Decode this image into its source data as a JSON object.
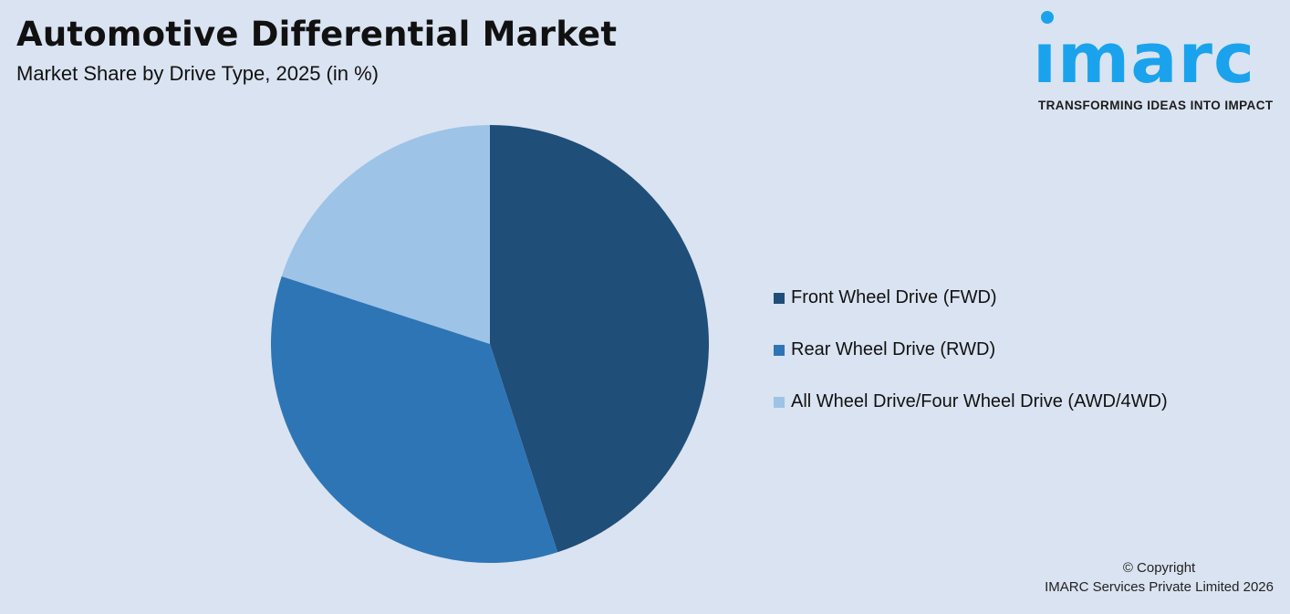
{
  "header": {
    "title": "Automotive Differential Market",
    "subtitle": "Market Share by Drive Type, 2025 (in %)"
  },
  "logo": {
    "word": "ımarc",
    "tagline": "TRANSFORMING IDEAS INTO IMPACT",
    "color": "#1aa3ec"
  },
  "legend": {
    "items": [
      {
        "label": "Front Wheel Drive (FWD)",
        "color": "#1f4e79"
      },
      {
        "label": "Rear Wheel Drive (RWD)",
        "color": "#2e75b6"
      },
      {
        "label": "All Wheel Drive/Four Wheel Drive (AWD/4WD)",
        "color": "#9dc3e6"
      }
    ]
  },
  "footer": {
    "line1": "© Copyright",
    "line2": "IMARC Services Private Limited 2026"
  },
  "chart_data": {
    "type": "pie",
    "title": "Automotive Differential Market",
    "subtitle": "Market Share by Drive Type, 2025 (in %)",
    "categories": [
      "Front Wheel Drive (FWD)",
      "Rear Wheel Drive (RWD)",
      "All Wheel Drive/Four Wheel Drive (AWD/4WD)"
    ],
    "values": [
      45,
      35,
      20
    ],
    "colors": [
      "#1f4e79",
      "#2e75b6",
      "#9dc3e6"
    ],
    "start_angle": "12 o'clock, clockwise",
    "legend_position": "right",
    "data_labels": false
  }
}
